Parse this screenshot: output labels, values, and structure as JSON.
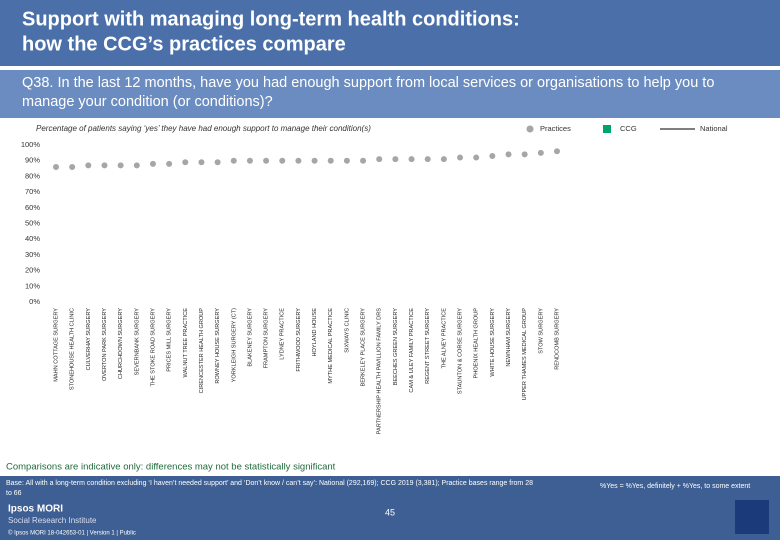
{
  "header": {
    "title_line1": "Support with managing long-term health conditions:",
    "title_line2": "how the CCG’s practices compare",
    "question": "Q38. In the last 12 months, have you had enough support from local services or organisations to help you to manage your condition (or conditions)?"
  },
  "chart_data": {
    "type": "scatter-category",
    "subtitle": "Percentage of patients saying ‘yes’ they have had enough support to manage their condition(s)",
    "categories": [
      "MAHN COTTAGE SURGERY",
      "STONEHOUSE HEALTH CLINIC",
      "CULVERHAY SURGERY",
      "OVERTON PARK SURGERY",
      "CHURCHDOWN SURGERY",
      "SEVERNBANK SURGERY",
      "THE STOKE ROAD SURGERY",
      "PRICES MILL SURGERY",
      "WALNUT TREE PRACTICE",
      "CIRENCESTER HEALTH GROUP",
      "ROWNEY HOUSE SURGERY",
      "YORKLEIGH SURGERY (CT)",
      "BLAKENEY SURGERY",
      "FRAMPTON SURGERY",
      "LYDNEY PRACTICE",
      "FRITHWOOD SURGERY",
      "HOYLAND HOUSE",
      "MYTHE MEDICAL PRACTICE",
      "SIXWAYS CLINIC",
      "BERKELEY PLACE SURGERY",
      "PARTNERSHIP HEALTH PAVILLION FAMILY DRS",
      "BEECHES GREEN SURGERY",
      "CAM & ULEY FAMILY PRACTICE",
      "REGENT STREET SURGERY",
      "THE ALNEY PRACTICE",
      "STAUNTON & CORSE SURGERY",
      "PHOENIX HEALTH GROUP",
      "WHITE HOUSE SURGERY",
      "NEWNHAM SURGERY",
      "UPPER THAMES MEDICAL GROUP",
      "STOW SURGERY",
      "RENDCOMB SURGERY"
    ],
    "series": [
      {
        "name": "Practices",
        "color": "#a6a6a6",
        "values": [
          86,
          86,
          87,
          87,
          87,
          87,
          88,
          88,
          89,
          89,
          89,
          90,
          90,
          90,
          90,
          90,
          90,
          90,
          90,
          90,
          91,
          91,
          91,
          91,
          91,
          92,
          92,
          93,
          94,
          94,
          95,
          96
        ]
      }
    ],
    "legend_extra": [
      {
        "name": "CCG",
        "color": "#00a36c"
      },
      {
        "name": "National",
        "color": "#7f7f7f"
      }
    ],
    "ylim": [
      0,
      100
    ],
    "yticks": [
      {
        "value": 0,
        "label": "0%"
      },
      {
        "value": 10,
        "label": "10%"
      },
      {
        "value": 20,
        "label": "20%"
      },
      {
        "value": 30,
        "label": "30%"
      },
      {
        "value": 40,
        "label": "40%"
      },
      {
        "value": 50,
        "label": "50%"
      },
      {
        "value": 60,
        "label": "60%"
      },
      {
        "value": 70,
        "label": "70%"
      },
      {
        "value": 80,
        "label": "80%"
      },
      {
        "value": 90,
        "label": "90%"
      },
      {
        "value": 100,
        "label": "100%"
      }
    ]
  },
  "footer": {
    "caveat": "Comparisons are indicative only: differences may not be statistically significant",
    "base": "Base: All with a long-term condition excluding ‘I haven’t needed support’ and ‘Don’t know / can’t say’: National (292,169); CCG 2019 (3,381); Practice bases range from 28 to 66",
    "definition": "%Yes = %Yes, definitely + %Yes, to some extent",
    "page": "45",
    "logo1": "Ipsos MORI",
    "logo2": "Social Research Institute",
    "copyright": "© Ipsos MORI     18-042653-01 | Version 1 | Public"
  }
}
